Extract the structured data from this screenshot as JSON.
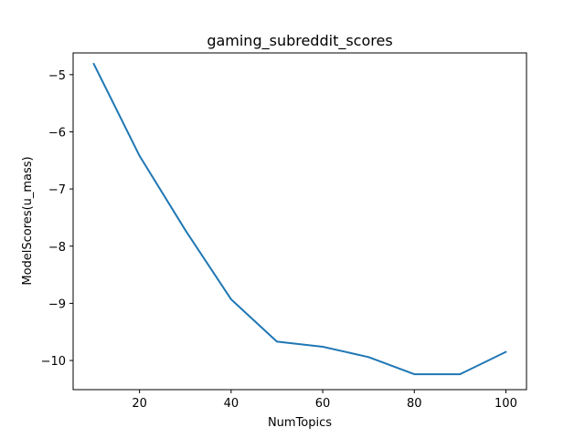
{
  "chart_data": {
    "type": "line",
    "title": "gaming_subreddit_scores",
    "xlabel": "NumTopics",
    "ylabel": "ModelScores(u_mass)",
    "xlim": [
      5.5,
      104.5
    ],
    "ylim": [
      -10.51,
      -4.62
    ],
    "xticks": [
      20,
      40,
      60,
      80,
      100
    ],
    "xtick_labels": [
      "20",
      "40",
      "60",
      "80",
      "100"
    ],
    "yticks": [
      -10,
      -9,
      -8,
      -7,
      -6,
      -5
    ],
    "ytick_labels": [
      "−10",
      "−9",
      "−8",
      "−7",
      "−6",
      "−5"
    ],
    "grid": false,
    "series": [
      {
        "color": "#1f77b4",
        "x": [
          10,
          20,
          30,
          40,
          50,
          60,
          70,
          80,
          90,
          100
        ],
        "y": [
          -4.81,
          -6.42,
          -7.72,
          -8.93,
          -9.67,
          -9.76,
          -9.94,
          -10.24,
          -10.24,
          -9.85
        ]
      }
    ]
  }
}
